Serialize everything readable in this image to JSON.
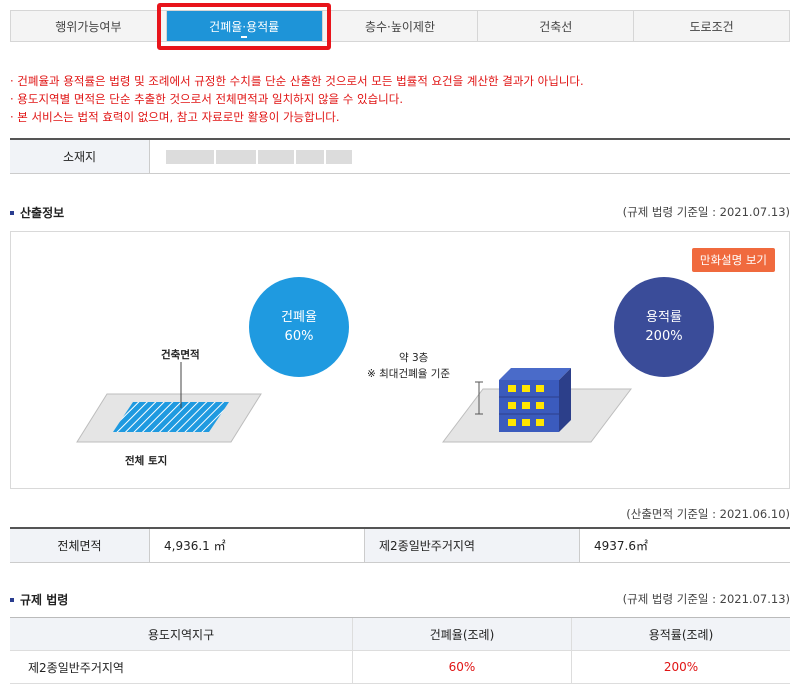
{
  "tabs": [
    {
      "label": "행위가능여부",
      "active": false
    },
    {
      "label": "건폐율·용적률",
      "active": true
    },
    {
      "label": "층수·높이제한",
      "active": false
    },
    {
      "label": "건축선",
      "active": false
    },
    {
      "label": "도로조건",
      "active": false
    }
  ],
  "notices": [
    "· 건폐율과 용적률은 법령 및 조례에서 규정한 수치를 단순 산출한 것으로서 모든 법률적 요건을 계산한 결과가 아닙니다.",
    "· 용도지역별 면적은 단순 추출한 것으로서 전체면적과 일치하지 않을 수 있습니다.",
    "· 본 서비스는 법적 효력이 없으며, 참고 자료로만 활용이 가능합니다."
  ],
  "location": {
    "label": "소재지",
    "value": ""
  },
  "calc_section": {
    "title": "산출정보",
    "ref": "(규제 법령 기준일 : 2021.07.13)"
  },
  "diagram": {
    "cartoon_button": "만화설명 보기",
    "coverage_circle": {
      "title": "건폐율",
      "value": "60%"
    },
    "far_circle": {
      "title": "용적률",
      "value": "200%"
    },
    "building_area_label": "건축면적",
    "total_land_label": "전체 토지",
    "floors_label": "약 3층",
    "floors_note": "※ 최대건폐율 기준",
    "colors": {
      "coverage": "#1f9ae0",
      "far": "#3a4c99",
      "button": "#f06a3e"
    }
  },
  "area_ref": "(산출면적 기준일 : 2021.06.10)",
  "area_table": {
    "total_label": "전체면적",
    "total_value": "4,936.1 ㎡",
    "zone_label": "제2종일반주거지역",
    "zone_value": "4937.6㎡"
  },
  "reg_section": {
    "title": "규제 법령",
    "ref": "(규제 법령 기준일 : 2021.07.13)"
  },
  "reg_table": {
    "headers": [
      "용도지역지구",
      "건폐율(조례)",
      "용적률(조례)"
    ],
    "rows": [
      {
        "zone": "제2종일반주거지역",
        "coverage": "60%",
        "far": "200%"
      }
    ]
  }
}
